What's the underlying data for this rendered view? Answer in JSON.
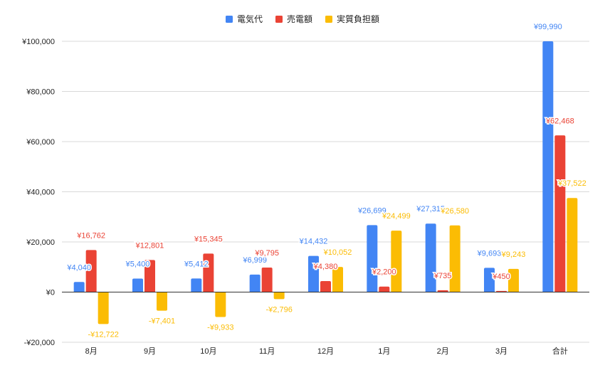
{
  "chart_data": {
    "type": "bar",
    "title": "",
    "xlabel": "",
    "ylabel": "",
    "categories": [
      "8月",
      "9月",
      "10月",
      "11月",
      "12月",
      "1月",
      "2月",
      "3月",
      "合計"
    ],
    "series": [
      {
        "name": "電気代",
        "color": "#4285f4",
        "values": [
          4040,
          5400,
          5412,
          6999,
          14432,
          26699,
          27315,
          9693,
          99990
        ],
        "labels": [
          "¥4,040",
          "¥5,400",
          "¥5,412",
          "¥6,999",
          "¥14,432",
          "¥26,699",
          "¥27,315",
          "¥9,693",
          "¥99,990"
        ]
      },
      {
        "name": "売電額",
        "color": "#ea4335",
        "values": [
          16762,
          12801,
          15345,
          9795,
          4380,
          2200,
          735,
          450,
          62468
        ],
        "labels": [
          "¥16,762",
          "¥12,801",
          "¥15,345",
          "¥9,795",
          "¥4,380",
          "¥2,200",
          "¥735",
          "¥450",
          "¥62,468"
        ]
      },
      {
        "name": "実質負担額",
        "color": "#fbbc04",
        "values": [
          -12722,
          -7401,
          -9933,
          -2796,
          10052,
          24499,
          26580,
          9243,
          37522
        ],
        "labels": [
          "-¥12,722",
          "-¥7,401",
          "-¥9,933",
          "-¥2,796",
          "¥10,052",
          "¥24,499",
          "¥26,580",
          "¥9,243",
          "¥37,522"
        ]
      }
    ],
    "ylim": [
      -20000,
      100000
    ],
    "yticks": [
      -20000,
      0,
      20000,
      40000,
      60000,
      80000,
      100000
    ],
    "ytick_labels": [
      "-¥20,000",
      "¥0",
      "¥20,000",
      "¥40,000",
      "¥60,000",
      "¥80,000",
      "¥100,000"
    ],
    "grid": true,
    "legend_position": "top-center"
  }
}
